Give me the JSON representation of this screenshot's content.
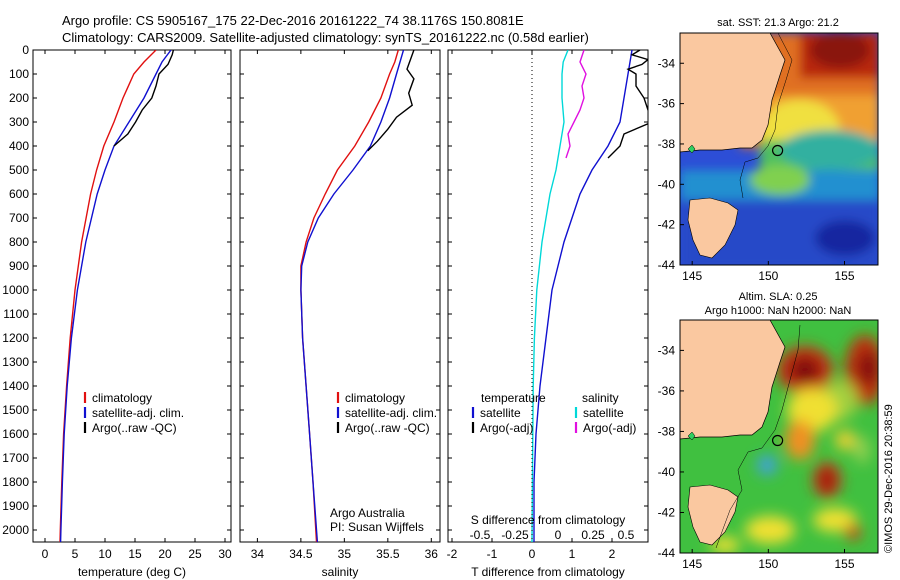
{
  "header": {
    "line1": "Argo profile: CS 5905167_175 22-Dec-2016 20161222_74 38.1176S 150.8081E",
    "line2": "Climatology: CARS2009. Satellite-adjusted climatology: synTS_20161222.nc (0.58d earlier)"
  },
  "chart_data": [
    {
      "type": "line",
      "xlabel": "temperature (deg C)",
      "xlim": [
        -2,
        31
      ],
      "xticks": [
        "0",
        "5",
        "10",
        "15",
        "20",
        "25",
        "30"
      ],
      "ylim": [
        0,
        2050
      ],
      "yticks": [
        "0",
        "100",
        "200",
        "300",
        "400",
        "500",
        "600",
        "700",
        "800",
        "900",
        "1000",
        "1100",
        "1200",
        "1300",
        "1400",
        "1500",
        "1600",
        "1700",
        "1800",
        "1900",
        "2000"
      ],
      "legend": [
        "climatology",
        "satellite-adj. clim.",
        "Argo(..raw -QC)"
      ],
      "series": [
        {
          "color": "#e11010",
          "depth": [
            0,
            50,
            100,
            200,
            300,
            400,
            500,
            600,
            800,
            1000,
            1200,
            1400,
            1600,
            1800,
            2000,
            2050
          ],
          "values": [
            18.5,
            16.5,
            14.8,
            13.0,
            11.5,
            9.8,
            8.6,
            7.6,
            6.1,
            5.0,
            4.2,
            3.6,
            3.1,
            2.8,
            2.55,
            2.5
          ]
        },
        {
          "color": "#1010d0",
          "depth": [
            0,
            50,
            100,
            200,
            300,
            400,
            500,
            600,
            800,
            1000,
            1200,
            1400,
            1600,
            1800,
            2000,
            2050
          ],
          "values": [
            21.0,
            19.5,
            18.5,
            16.5,
            14.0,
            11.5,
            10.0,
            8.7,
            6.8,
            5.4,
            4.4,
            3.7,
            3.2,
            2.9,
            2.65,
            2.6
          ]
        },
        {
          "color": "#000000",
          "depth": [
            0,
            20,
            60,
            100,
            150,
            200,
            250,
            300,
            350,
            400
          ],
          "values": [
            21.4,
            21.2,
            20.5,
            19.0,
            18.5,
            17.8,
            16.2,
            15.1,
            13.8,
            11.5
          ]
        }
      ]
    },
    {
      "type": "line",
      "xlabel": "salinity",
      "xlim": [
        33.8,
        36.1
      ],
      "xticks": [
        "34",
        "34.5",
        "35",
        "35.5",
        "36"
      ],
      "ylim": [
        0,
        2050
      ],
      "legend": [
        "climatology",
        "satellite-adj. clim.",
        "Argo(..raw -QC)"
      ],
      "annotation": [
        "Argo Australia",
        "PI: Susan Wijffels"
      ],
      "series": [
        {
          "color": "#e11010",
          "depth": [
            0,
            50,
            100,
            200,
            300,
            400,
            500,
            600,
            700,
            800,
            900,
            1000,
            1200,
            1400,
            1600,
            1800,
            2050
          ],
          "values": [
            35.62,
            35.58,
            35.52,
            35.42,
            35.28,
            35.12,
            34.92,
            34.78,
            34.65,
            34.56,
            34.5,
            34.5,
            34.52,
            34.56,
            34.6,
            34.64,
            34.68
          ]
        },
        {
          "color": "#1010d0",
          "depth": [
            0,
            50,
            100,
            200,
            300,
            400,
            500,
            600,
            700,
            800,
            900,
            1000,
            1200,
            1400,
            1600,
            1800,
            2050
          ],
          "values": [
            35.68,
            35.64,
            35.6,
            35.52,
            35.42,
            35.3,
            35.1,
            34.88,
            34.7,
            34.58,
            34.51,
            34.5,
            34.52,
            34.56,
            34.6,
            34.64,
            34.69
          ]
        },
        {
          "color": "#000000",
          "depth": [
            0,
            30,
            80,
            120,
            180,
            230,
            280,
            330,
            380,
            420
          ],
          "values": [
            35.8,
            35.77,
            35.72,
            35.8,
            35.74,
            35.78,
            35.6,
            35.5,
            35.38,
            35.27
          ]
        }
      ]
    },
    {
      "type": "line",
      "xlabel_t": "T difference from climatology",
      "xlabel_s": "S difference from climatology",
      "xlim": [
        -2.1,
        2.9
      ],
      "xticks": [
        "-2",
        "-1",
        "0",
        "1",
        "2"
      ],
      "xticks_s": [
        "-0.5",
        "-0.25",
        "0",
        "0.25",
        "0.5"
      ],
      "ylim": [
        0,
        2050
      ],
      "legend": {
        "temperature_title": "temperature",
        "salinity_title": "salinity",
        "entries": [
          "satellite",
          "Argo(-adj)",
          "satellite",
          "Argo(-adj)"
        ]
      },
      "series": [
        {
          "color": "#1010d0",
          "depth": [
            0,
            100,
            200,
            300,
            400,
            500,
            600,
            800,
            1000,
            1200,
            1400,
            1600,
            1800,
            2050
          ],
          "values": [
            2.5,
            2.4,
            2.3,
            2.2,
            1.9,
            1.5,
            1.2,
            0.8,
            0.5,
            0.35,
            0.2,
            0.1,
            0.05,
            0.05
          ]
        },
        {
          "color": "#000000",
          "depth": [
            0,
            20,
            40,
            60,
            80,
            100,
            150,
            200,
            250,
            300,
            350,
            400,
            450
          ],
          "values": [
            2.7,
            2.5,
            2.9,
            2.75,
            2.4,
            2.6,
            2.6,
            2.8,
            2.9,
            3.0,
            2.3,
            2.2,
            1.9
          ]
        },
        {
          "color": "#00d8d8",
          "depth": [
            0,
            50,
            100,
            200,
            300,
            400,
            500,
            600,
            800,
            1000,
            1200,
            1400,
            1600,
            1800,
            2050
          ],
          "values": [
            0.9,
            0.78,
            0.75,
            0.75,
            0.8,
            0.7,
            0.6,
            0.45,
            0.25,
            0.12,
            0.06,
            0.03,
            0.02,
            0.01,
            0.0
          ]
        },
        {
          "color": "#e010e0",
          "depth": [
            0,
            50,
            100,
            150,
            200,
            250,
            300,
            350,
            400,
            450
          ],
          "values": [
            1.3,
            1.2,
            1.35,
            1.25,
            1.3,
            1.2,
            1.05,
            0.9,
            0.95,
            0.85
          ]
        }
      ]
    },
    {
      "type": "heatmap",
      "title": "sat. SST: 21.3 Argo: 21.2",
      "xticks": [
        "145",
        "150",
        "155"
      ],
      "yticks": [
        "-34",
        "-36",
        "-38",
        "-40",
        "-42",
        "-44"
      ],
      "xlim": [
        144.2,
        157.2
      ],
      "ylim": [
        -44,
        -32.5
      ],
      "argo_position": [
        150.8081,
        -38.1176
      ]
    },
    {
      "type": "heatmap",
      "title_line1": "Altim. SLA: 0.25",
      "title_line2": "Argo h1000: NaN h2000: NaN",
      "xticks": [
        "145",
        "150",
        "155"
      ],
      "yticks": [
        "-34",
        "-36",
        "-38",
        "-40",
        "-42",
        "-44"
      ],
      "xlim": [
        144.2,
        157.2
      ],
      "ylim": [
        -44,
        -32.5
      ],
      "argo_position": [
        150.8081,
        -38.1176
      ]
    }
  ],
  "credit": "©IMOS 29-Dec-2016 20:38:59"
}
